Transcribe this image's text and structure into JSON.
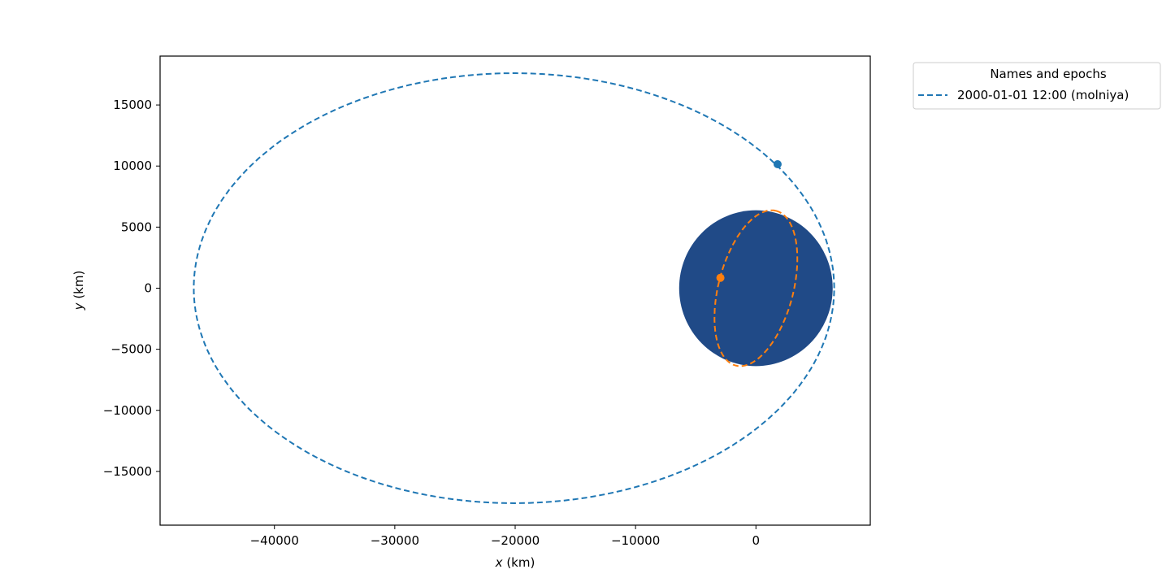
{
  "chart_data": {
    "type": "scatter",
    "title": "",
    "xlabel": "x (km)",
    "ylabel": "y (km)",
    "xlim": [
      -49500,
      9500
    ],
    "ylim": [
      -19400,
      19000
    ],
    "xticks": [
      -40000,
      -30000,
      -20000,
      -10000,
      0
    ],
    "xtick_labels": [
      "−40000",
      "−30000",
      "−20000",
      "−10000",
      "0"
    ],
    "yticks": [
      -15000,
      -10000,
      -5000,
      0,
      5000,
      10000,
      15000
    ],
    "ytick_labels": [
      "−15000",
      "−10000",
      "−5000",
      "0",
      "5000",
      "10000",
      "15000"
    ],
    "grid": false,
    "legend": {
      "title": "Names and epochs",
      "placement": "outside-top-right",
      "entries": [
        "2000-01-01 12:00 (molniya)"
      ]
    },
    "attractor": {
      "center": [
        0,
        0
      ],
      "radius": 6378,
      "color": "#204a87"
    },
    "series": [
      {
        "name": "2000-01-01 12:00 (molniya)",
        "style": "dashed",
        "color": "#1f77b4",
        "orbit": {
          "center": [
            -20100,
            0
          ],
          "a": 26600,
          "b": 17600,
          "rotation": 0
        },
        "marker": [
          1800,
          10150
        ]
      },
      {
        "style": "dashed",
        "color": "#ff7f0e",
        "orbit": {
          "center": [
            0,
            0
          ],
          "a": 6550,
          "b": 3100,
          "rotation": 75
        },
        "marker": [
          -2950,
          850
        ]
      }
    ]
  }
}
